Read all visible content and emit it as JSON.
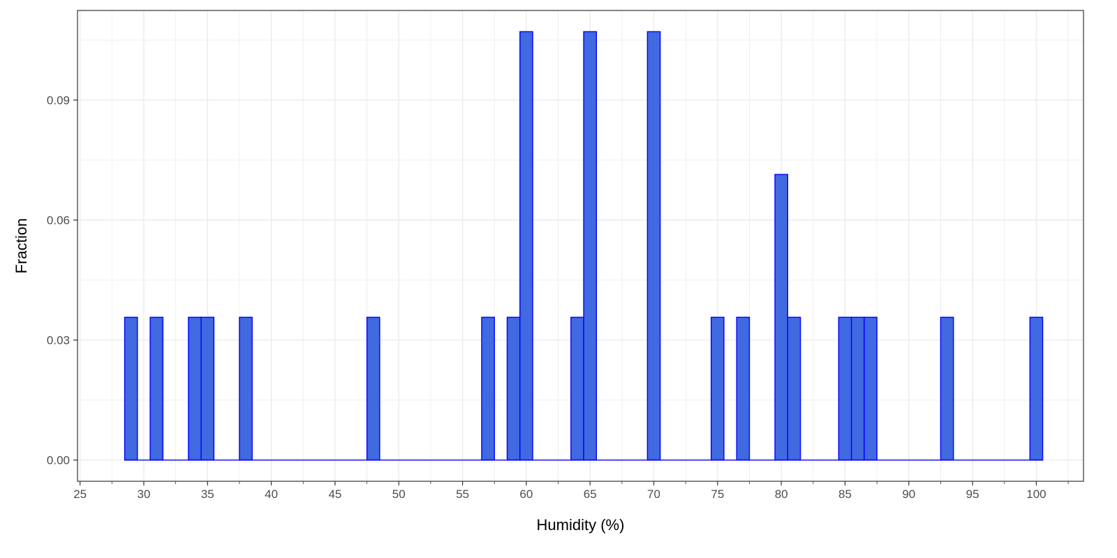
{
  "chart_data": {
    "type": "bar",
    "xlabel": "Humidity (%)",
    "ylabel": "Fraction",
    "xlim": [
      24.8,
      103.7
    ],
    "ylim": [
      -0.0053,
      0.1124
    ],
    "x_ticks": [
      "25",
      "30",
      "35",
      "40",
      "45",
      "50",
      "55",
      "60",
      "65",
      "70",
      "75",
      "80",
      "85",
      "90",
      "95",
      "100"
    ],
    "y_ticks": [
      "0.00",
      "0.03",
      "0.06",
      "0.09"
    ],
    "bin_width": 1,
    "bins": [
      {
        "x": 29,
        "value": 0.0357
      },
      {
        "x": 31,
        "value": 0.0357
      },
      {
        "x": 34,
        "value": 0.0357
      },
      {
        "x": 35,
        "value": 0.0357
      },
      {
        "x": 38,
        "value": 0.0357
      },
      {
        "x": 48,
        "value": 0.0357
      },
      {
        "x": 57,
        "value": 0.0357
      },
      {
        "x": 59,
        "value": 0.0357
      },
      {
        "x": 60,
        "value": 0.1071
      },
      {
        "x": 64,
        "value": 0.0357
      },
      {
        "x": 65,
        "value": 0.1071
      },
      {
        "x": 70,
        "value": 0.1071
      },
      {
        "x": 75,
        "value": 0.0357
      },
      {
        "x": 77,
        "value": 0.0357
      },
      {
        "x": 80,
        "value": 0.0714
      },
      {
        "x": 81,
        "value": 0.0357
      },
      {
        "x": 85,
        "value": 0.0357
      },
      {
        "x": 86,
        "value": 0.0357
      },
      {
        "x": 87,
        "value": 0.0357
      },
      {
        "x": 93,
        "value": 0.0357
      },
      {
        "x": 100,
        "value": 0.0357
      }
    ],
    "grid": true,
    "colors": {
      "fill": "#4169e1",
      "outline": "#0000ff",
      "grid": "#ebebeb",
      "panel_border": "#333333"
    }
  }
}
